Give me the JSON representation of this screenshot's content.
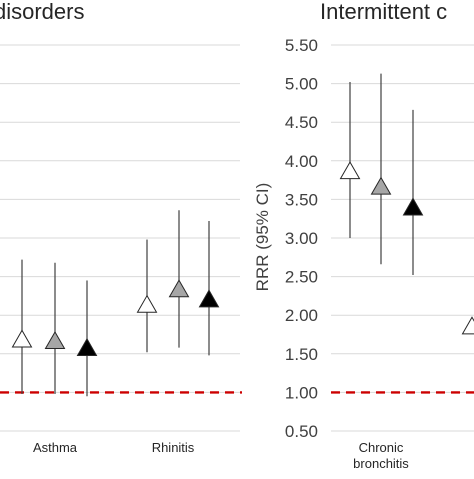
{
  "chart_data": [
    {
      "type": "scatter",
      "title": "disorders",
      "categories": [
        "Asthma",
        "Rhinitis"
      ],
      "ylim": [
        0.5,
        5.5
      ],
      "reference_line": 1.0,
      "grid": true,
      "series": [
        {
          "marker_color": "#ffffff",
          "values": [
            1.67,
            2.12
          ],
          "ci_lower": [
            0.98,
            1.52
          ],
          "ci_upper": [
            2.72,
            2.98
          ]
        },
        {
          "marker_color": "#a6a6a6",
          "values": [
            1.65,
            2.32
          ],
          "ci_lower": [
            0.98,
            1.58
          ],
          "ci_upper": [
            2.68,
            3.36
          ]
        },
        {
          "marker_color": "#000000",
          "values": [
            1.56,
            2.19
          ],
          "ci_lower": [
            0.95,
            1.48
          ],
          "ci_upper": [
            2.45,
            3.22
          ]
        }
      ]
    },
    {
      "type": "scatter",
      "title": "Intermittent c",
      "ylabel": "RRR (95% CI)",
      "ylim": [
        0.5,
        5.5
      ],
      "yticks": [
        "0.50",
        "1.00",
        "1.50",
        "2.00",
        "2.50",
        "3.00",
        "3.50",
        "4.00",
        "4.50",
        "5.00",
        "5.50"
      ],
      "categories": [
        "Chronic bronchitis"
      ],
      "reference_line": 1.0,
      "grid": true,
      "series": [
        {
          "marker_color": "#ffffff",
          "values": [
            3.85
          ],
          "ci_lower": [
            3.0
          ],
          "ci_upper": [
            5.02
          ]
        },
        {
          "marker_color": "#a6a6a6",
          "values": [
            3.65
          ],
          "ci_lower": [
            2.66
          ],
          "ci_upper": [
            5.13
          ]
        },
        {
          "marker_color": "#000000",
          "values": [
            3.38
          ],
          "ci_lower": [
            2.52
          ],
          "ci_upper": [
            4.66
          ]
        },
        {
          "marker_color": "#ffffff",
          "values": [
            1.84
          ],
          "ci_lower": [],
          "ci_upper": []
        }
      ]
    }
  ],
  "colors": {
    "reference_line": "#cc0000",
    "grid": "#d9d9d9",
    "whisker": "#404040"
  }
}
